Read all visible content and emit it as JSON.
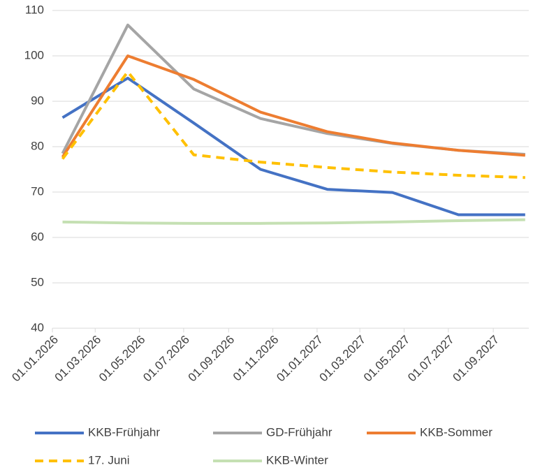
{
  "chart_data": {
    "type": "line",
    "x": [
      "15.01.2026",
      "15.04.2026",
      "15.07.2026",
      "15.10.2026",
      "15.01.2027",
      "15.04.2027",
      "15.07.2027",
      "15.10.2027"
    ],
    "series": [
      {
        "name": "KKB-Frühjahr",
        "color": "#4472c4",
        "dashed": false,
        "values": [
          86.4,
          95.1,
          85.2,
          75,
          70.6,
          69.9,
          65,
          65
        ]
      },
      {
        "name": "GD-Frühjahr",
        "color": "#a5a5a5",
        "dashed": false,
        "values": [
          78.5,
          106.8,
          92.7,
          86.2,
          82.9,
          80.7,
          79.2,
          78.3
        ]
      },
      {
        "name": "KKB-Sommer",
        "color": "#ed7d31",
        "dashed": false,
        "values": [
          77.7,
          100,
          94.8,
          87.6,
          83.3,
          80.8,
          79.2,
          78.1
        ]
      },
      {
        "name": "17. Juni",
        "color": "#ffc000",
        "dashed": true,
        "values": [
          77.3,
          96.5,
          78.2,
          76.6,
          75.4,
          74.4,
          73.7,
          73.2
        ]
      },
      {
        "name": "KKB-Winter",
        "color": "#c5e0b3",
        "dashed": false,
        "values": [
          63.4,
          63.2,
          63.1,
          63.1,
          63.2,
          63.4,
          63.7,
          63.9
        ]
      }
    ],
    "xlim": [
      "01.01.2026",
      "20.10.2027"
    ],
    "xticks": [
      "01.01.2026",
      "01.03.2026",
      "01.05.2026",
      "01.07.2026",
      "01.09.2026",
      "01.11.2026",
      "01.01.2027",
      "01.03.2027",
      "01.05.2027",
      "01.07.2027",
      "01.09.2027"
    ],
    "ylim": [
      40,
      110
    ],
    "yticks": [
      40,
      50,
      60,
      70,
      80,
      90,
      100,
      110
    ],
    "grid": true,
    "legend": "bottom"
  }
}
